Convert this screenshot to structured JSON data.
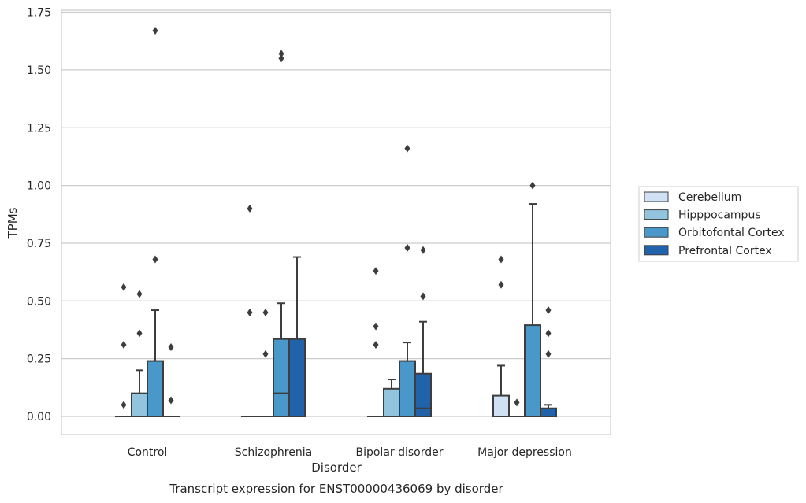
{
  "chart_data": {
    "type": "box",
    "caption": "Transcript expression for ENST00000436069 by disorder",
    "xlabel": "Disorder",
    "ylabel": "TPMs",
    "ylim": [
      -0.08,
      1.755
    ],
    "yticks": [
      0.0,
      0.25,
      0.5,
      0.75,
      1.0,
      1.25,
      1.5,
      1.75
    ],
    "ytick_labels": [
      "0.00",
      "0.25",
      "0.50",
      "0.75",
      "1.00",
      "1.25",
      "1.50",
      "1.75"
    ],
    "grid": "horizontal",
    "legend_position": "right",
    "categories": [
      "Control",
      "Schizophrenia",
      "Bipolar disorder",
      "Major depression"
    ],
    "series": [
      {
        "name": "Cerebellum",
        "color": "#cfe1f2",
        "boxes": [
          {
            "q1": 0,
            "median": 0,
            "q3": 0,
            "whisker_low": 0,
            "whisker_high": 0,
            "outliers": [
              0.05,
              0.31,
              0.56
            ]
          },
          {
            "q1": 0,
            "median": 0,
            "q3": 0,
            "whisker_low": 0,
            "whisker_high": 0,
            "outliers": [
              0.45,
              0.9
            ]
          },
          {
            "q1": 0,
            "median": 0,
            "q3": 0,
            "whisker_low": 0,
            "whisker_high": 0,
            "outliers": [
              0.31,
              0.39,
              0.63
            ]
          },
          {
            "q1": 0,
            "median": 0,
            "q3": 0.09,
            "whisker_low": 0,
            "whisker_high": 0.22,
            "outliers": [
              0.57,
              0.68
            ]
          }
        ]
      },
      {
        "name": "Hipppocampus",
        "color": "#93c4de",
        "boxes": [
          {
            "q1": 0,
            "median": 0,
            "q3": 0.1,
            "whisker_low": 0,
            "whisker_high": 0.2,
            "outliers": [
              0.36,
              0.53
            ]
          },
          {
            "q1": 0,
            "median": 0,
            "q3": 0,
            "whisker_low": 0,
            "whisker_high": 0,
            "outliers": [
              0.27,
              0.45
            ]
          },
          {
            "q1": 0,
            "median": 0,
            "q3": 0.12,
            "whisker_low": 0,
            "whisker_high": 0.16,
            "outliers": []
          },
          {
            "q1": 0,
            "median": 0,
            "q3": 0,
            "whisker_low": 0,
            "whisker_high": 0,
            "outliers": [
              0.06
            ]
          }
        ]
      },
      {
        "name": "Orbitofontal Cortex",
        "color": "#4a98c9",
        "boxes": [
          {
            "q1": 0,
            "median": 0,
            "q3": 0.24,
            "whisker_low": 0,
            "whisker_high": 0.46,
            "outliers": [
              0.68,
              1.67
            ]
          },
          {
            "q1": 0,
            "median": 0.1,
            "q3": 0.335,
            "whisker_low": 0,
            "whisker_high": 0.49,
            "outliers": [
              1.55,
              1.57
            ]
          },
          {
            "q1": 0,
            "median": 0,
            "q3": 0.24,
            "whisker_low": 0,
            "whisker_high": 0.32,
            "outliers": [
              0.73,
              1.16
            ]
          },
          {
            "q1": 0,
            "median": 0,
            "q3": 0.395,
            "whisker_low": 0,
            "whisker_high": 0.92,
            "outliers": [
              1.0
            ]
          }
        ]
      },
      {
        "name": "Prefrontal Cortex",
        "color": "#2163aa",
        "boxes": [
          {
            "q1": 0,
            "median": 0,
            "q3": 0,
            "whisker_low": 0,
            "whisker_high": 0,
            "outliers": [
              0.07,
              0.3
            ]
          },
          {
            "q1": 0,
            "median": 0,
            "q3": 0.335,
            "whisker_low": 0,
            "whisker_high": 0.69,
            "outliers": []
          },
          {
            "q1": 0,
            "median": 0.035,
            "q3": 0.185,
            "whisker_low": 0,
            "whisker_high": 0.41,
            "outliers": [
              0.52,
              0.72
            ]
          },
          {
            "q1": 0,
            "median": 0,
            "q3": 0.035,
            "whisker_low": 0,
            "whisker_high": 0.05,
            "outliers": [
              0.27,
              0.36,
              0.46
            ]
          }
        ]
      }
    ]
  }
}
